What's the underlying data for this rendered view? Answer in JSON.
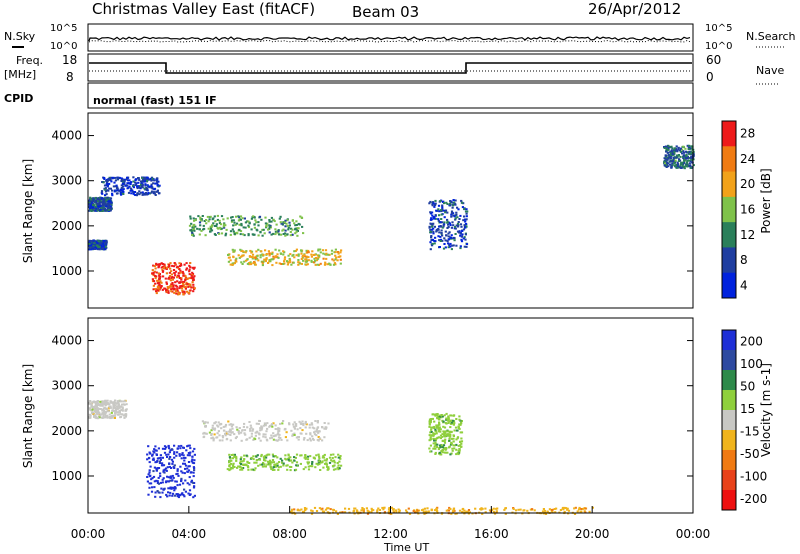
{
  "header": {
    "station": "Christmas Valley East (fitACF)",
    "beam": "Beam 03",
    "date": "26/Apr/2012"
  },
  "noise_panel": {
    "left_label": "N.Sky",
    "right_label": "N.Search",
    "left_ticks": [
      "10^5",
      "10^0"
    ],
    "right_ticks": [
      "10^5",
      "10^0"
    ]
  },
  "freq_panel": {
    "left_label_1": "Freq.",
    "left_label_2": "[MHz]",
    "left_ticks": [
      "18",
      "8"
    ],
    "right_ticks": [
      "60",
      "0"
    ],
    "right_label": "Nave"
  },
  "cpid_panel": {
    "label": "CPID",
    "mode_text": "normal (fast) 151 IF"
  },
  "colors": {
    "power_scale": [
      "#0022dd",
      "#1f3ea0",
      "#2a7f5a",
      "#7fc24a",
      "#f2a21a",
      "#f07b12",
      "#ee1a1a"
    ],
    "velocity_scale": [
      "#1e2fd6",
      "#2e4aa0",
      "#2e8a4a",
      "#8fcf3c",
      "#c8c8c4",
      "#f0b41c",
      "#f07a12",
      "#e8421a",
      "#ee1010"
    ]
  },
  "chart_data": [
    {
      "type": "heatmap",
      "name": "power",
      "ylabel": "Slant Range [km]",
      "xlabel": "",
      "x_range_hours": [
        0,
        24
      ],
      "ylim": [
        180,
        4500
      ],
      "y_ticks": [
        1000,
        2000,
        3000,
        4000
      ],
      "colorbar_label": "Power [dB]",
      "colorbar_ticks": [
        "28",
        "24",
        "20",
        "16",
        "12",
        "8",
        "4"
      ],
      "colorbar_range": [
        0,
        30
      ],
      "features": [
        {
          "t": [
            0.0,
            0.7
          ],
          "r": [
            1500,
            1700
          ],
          "level": 6
        },
        {
          "t": [
            0.0,
            0.9
          ],
          "r": [
            2350,
            2650
          ],
          "level": 7
        },
        {
          "t": [
            0.5,
            2.8
          ],
          "r": [
            2700,
            3100
          ],
          "level": 5
        },
        {
          "t": [
            2.5,
            4.2
          ],
          "r": [
            500,
            1200
          ],
          "level": 27
        },
        {
          "t": [
            5.5,
            10.0
          ],
          "r": [
            1150,
            1500
          ],
          "level": 18
        },
        {
          "t": [
            4.0,
            8.5
          ],
          "r": [
            1800,
            2250
          ],
          "level": 12
        },
        {
          "t": [
            13.5,
            15.0
          ],
          "r": [
            1500,
            2600
          ],
          "level": 6
        },
        {
          "t": [
            22.8,
            24.0
          ],
          "r": [
            3300,
            3800
          ],
          "level": 9
        }
      ]
    },
    {
      "type": "heatmap",
      "name": "velocity",
      "ylabel": "Slant Range [km]",
      "xlabel": "Time UT",
      "x_range_hours": [
        0,
        24
      ],
      "x_ticks": [
        "00:00",
        "04:00",
        "08:00",
        "12:00",
        "16:00",
        "20:00",
        "00:00"
      ],
      "ylim": [
        180,
        4500
      ],
      "y_ticks": [
        1000,
        2000,
        3000,
        4000
      ],
      "colorbar_label": "Velocity [m s-1]",
      "colorbar_ticks": [
        "200",
        "100",
        "50",
        "15",
        "-15",
        "-50",
        "-100",
        "-200"
      ],
      "colorbar_range": [
        -250,
        250
      ],
      "features": [
        {
          "t": [
            0.0,
            1.5
          ],
          "r": [
            2300,
            2700
          ],
          "level": 0
        },
        {
          "t": [
            2.3,
            4.2
          ],
          "r": [
            550,
            1700
          ],
          "level": 220
        },
        {
          "t": [
            5.5,
            10.0
          ],
          "r": [
            1150,
            1500
          ],
          "level": 60
        },
        {
          "t": [
            4.5,
            9.5
          ],
          "r": [
            1800,
            2250
          ],
          "level": 0
        },
        {
          "t": [
            13.5,
            14.8
          ],
          "r": [
            1500,
            2400
          ],
          "level": 60
        },
        {
          "t": [
            8.0,
            20.0
          ],
          "r": [
            180,
            320
          ],
          "level": -60
        }
      ]
    }
  ]
}
